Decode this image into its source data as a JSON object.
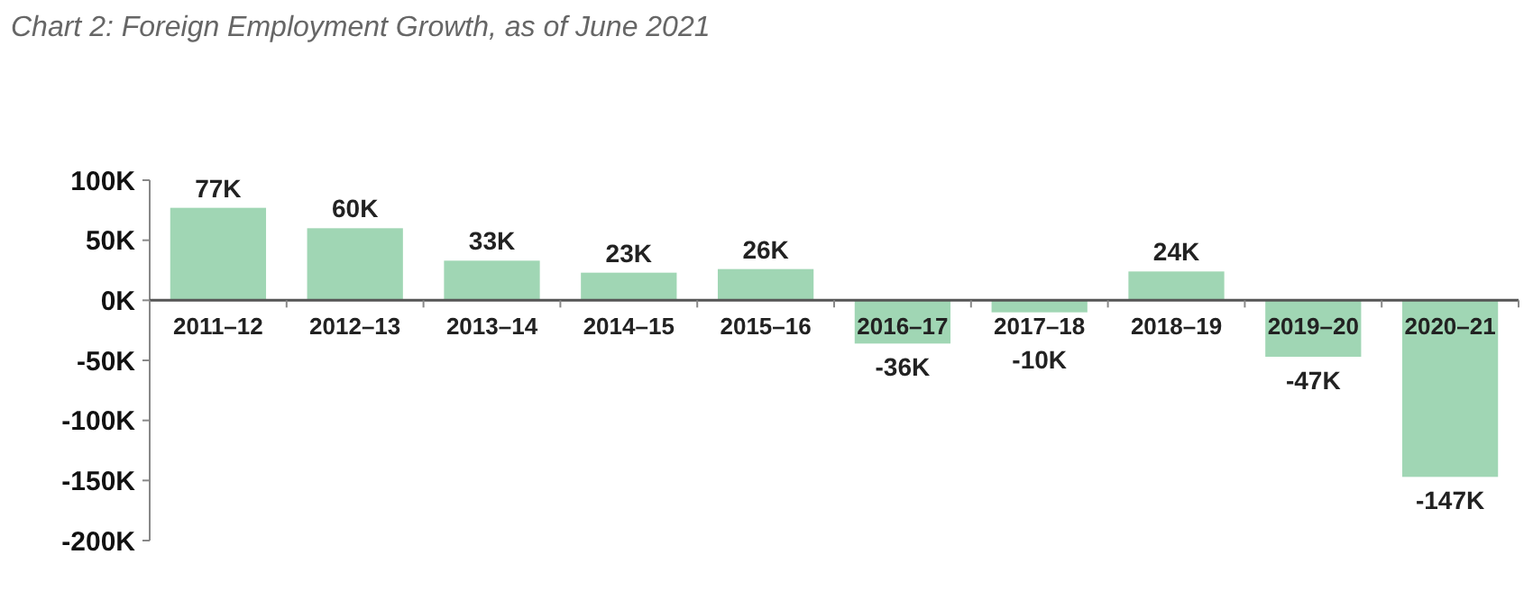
{
  "chart_data": {
    "type": "bar",
    "title": "Chart 2: Foreign Employment Growth, as of June 2021",
    "categories": [
      "2011–12",
      "2012–13",
      "2013–14",
      "2014–15",
      "2015–16",
      "2016–17",
      "2017–18",
      "2018–19",
      "2019–20",
      "2020–21"
    ],
    "values": [
      77,
      60,
      33,
      23,
      26,
      -36,
      -10,
      24,
      -47,
      -147
    ],
    "value_labels": [
      "77K",
      "60K",
      "33K",
      "23K",
      "26K",
      "-36K",
      "-10K",
      "24K",
      "-47K",
      "-147K"
    ],
    "color": "#a0d6b4",
    "ylim": [
      -200,
      100
    ],
    "yticks": [
      {
        "value": 100,
        "label": "100K"
      },
      {
        "value": 50,
        "label": "50K"
      },
      {
        "value": 0,
        "label": "0K"
      },
      {
        "value": -50,
        "label": "-50K"
      },
      {
        "value": -100,
        "label": "-100K"
      },
      {
        "value": -150,
        "label": "-150K"
      },
      {
        "value": -200,
        "label": "-200K"
      }
    ],
    "grid": false
  }
}
